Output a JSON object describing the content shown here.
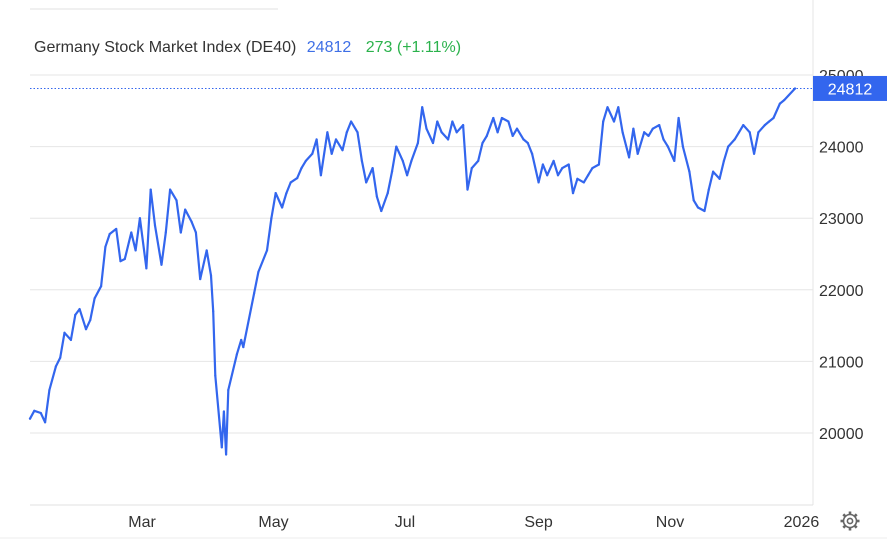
{
  "header": {
    "title": "Germany Stock Market Index (DE40)",
    "last": "24812",
    "change": "273 (+1.11%)"
  },
  "price_tag": "24812",
  "settings_icon": "gear-icon",
  "colors": {
    "line": "#3366ee",
    "last": "#3e6fe6",
    "positive": "#2bb24c",
    "grid": "#e6e6e6",
    "tag_bg": "#3366ee"
  },
  "chart_data": {
    "type": "line",
    "title": "Germany Stock Market Index (DE40)",
    "xlabel": "",
    "ylabel": "",
    "ylim": [
      19000,
      25100
    ],
    "y_ticks": [
      20000,
      21000,
      22000,
      23000,
      24000,
      25000
    ],
    "x_tick_labels": [
      {
        "label": "Mar",
        "x": "2025-03-01"
      },
      {
        "label": "May",
        "x": "2025-05-01"
      },
      {
        "label": "Jul",
        "x": "2025-07-01"
      },
      {
        "label": "Sep",
        "x": "2025-09-01"
      },
      {
        "label": "Nov",
        "x": "2025-11-01"
      },
      {
        "label": "2026",
        "x": "2026-01-01"
      }
    ],
    "xlim": [
      "2025-01-08",
      "2026-01-14"
    ],
    "grid": "horizontal",
    "last_value": 24812,
    "series": [
      {
        "points": [
          [
            "2025-01-08",
            20200
          ],
          [
            "2025-01-10",
            20310
          ],
          [
            "2025-01-13",
            20280
          ],
          [
            "2025-01-15",
            20150
          ],
          [
            "2025-01-17",
            20600
          ],
          [
            "2025-01-20",
            20930
          ],
          [
            "2025-01-22",
            21050
          ],
          [
            "2025-01-24",
            21400
          ],
          [
            "2025-01-27",
            21300
          ],
          [
            "2025-01-29",
            21650
          ],
          [
            "2025-01-31",
            21730
          ],
          [
            "2025-02-03",
            21450
          ],
          [
            "2025-02-05",
            21580
          ],
          [
            "2025-02-07",
            21880
          ],
          [
            "2025-02-10",
            22050
          ],
          [
            "2025-02-12",
            22600
          ],
          [
            "2025-02-14",
            22780
          ],
          [
            "2025-02-17",
            22850
          ],
          [
            "2025-02-19",
            22400
          ],
          [
            "2025-02-21",
            22430
          ],
          [
            "2025-02-24",
            22800
          ],
          [
            "2025-02-26",
            22550
          ],
          [
            "2025-02-28",
            23000
          ],
          [
            "2025-03-03",
            22300
          ],
          [
            "2025-03-05",
            23400
          ],
          [
            "2025-03-07",
            22900
          ],
          [
            "2025-03-10",
            22350
          ],
          [
            "2025-03-12",
            22800
          ],
          [
            "2025-03-14",
            23400
          ],
          [
            "2025-03-17",
            23250
          ],
          [
            "2025-03-19",
            22800
          ],
          [
            "2025-03-21",
            23120
          ],
          [
            "2025-03-24",
            22950
          ],
          [
            "2025-03-26",
            22800
          ],
          [
            "2025-03-28",
            22150
          ],
          [
            "2025-03-31",
            22550
          ],
          [
            "2025-04-02",
            22200
          ],
          [
            "2025-04-03",
            21700
          ],
          [
            "2025-04-04",
            20800
          ],
          [
            "2025-04-07",
            19800
          ],
          [
            "2025-04-08",
            20300
          ],
          [
            "2025-04-09",
            19700
          ],
          [
            "2025-04-10",
            20600
          ],
          [
            "2025-04-14",
            21100
          ],
          [
            "2025-04-16",
            21300
          ],
          [
            "2025-04-17",
            21200
          ],
          [
            "2025-04-22",
            21950
          ],
          [
            "2025-04-24",
            22250
          ],
          [
            "2025-04-28",
            22550
          ],
          [
            "2025-04-30",
            23000
          ],
          [
            "2025-05-02",
            23350
          ],
          [
            "2025-05-05",
            23150
          ],
          [
            "2025-05-07",
            23350
          ],
          [
            "2025-05-09",
            23500
          ],
          [
            "2025-05-12",
            23560
          ],
          [
            "2025-05-14",
            23700
          ],
          [
            "2025-05-16",
            23800
          ],
          [
            "2025-05-19",
            23900
          ],
          [
            "2025-05-21",
            24100
          ],
          [
            "2025-05-23",
            23600
          ],
          [
            "2025-05-26",
            24200
          ],
          [
            "2025-05-28",
            23900
          ],
          [
            "2025-05-30",
            24100
          ],
          [
            "2025-06-02",
            23950
          ],
          [
            "2025-06-04",
            24200
          ],
          [
            "2025-06-06",
            24350
          ],
          [
            "2025-06-09",
            24200
          ],
          [
            "2025-06-11",
            23800
          ],
          [
            "2025-06-13",
            23500
          ],
          [
            "2025-06-16",
            23700
          ],
          [
            "2025-06-18",
            23300
          ],
          [
            "2025-06-20",
            23100
          ],
          [
            "2025-06-23",
            23350
          ],
          [
            "2025-06-25",
            23650
          ],
          [
            "2025-06-27",
            24000
          ],
          [
            "2025-06-30",
            23800
          ],
          [
            "2025-07-02",
            23600
          ],
          [
            "2025-07-04",
            23800
          ],
          [
            "2025-07-07",
            24050
          ],
          [
            "2025-07-09",
            24550
          ],
          [
            "2025-07-11",
            24250
          ],
          [
            "2025-07-14",
            24050
          ],
          [
            "2025-07-16",
            24350
          ],
          [
            "2025-07-18",
            24200
          ],
          [
            "2025-07-21",
            24100
          ],
          [
            "2025-07-23",
            24350
          ],
          [
            "2025-07-25",
            24200
          ],
          [
            "2025-07-28",
            24300
          ],
          [
            "2025-07-30",
            23400
          ],
          [
            "2025-08-01",
            23700
          ],
          [
            "2025-08-04",
            23800
          ],
          [
            "2025-08-06",
            24050
          ],
          [
            "2025-08-08",
            24150
          ],
          [
            "2025-08-11",
            24400
          ],
          [
            "2025-08-13",
            24200
          ],
          [
            "2025-08-15",
            24400
          ],
          [
            "2025-08-18",
            24350
          ],
          [
            "2025-08-20",
            24150
          ],
          [
            "2025-08-22",
            24250
          ],
          [
            "2025-08-25",
            24100
          ],
          [
            "2025-08-27",
            24050
          ],
          [
            "2025-08-29",
            23900
          ],
          [
            "2025-09-01",
            23500
          ],
          [
            "2025-09-03",
            23750
          ],
          [
            "2025-09-05",
            23600
          ],
          [
            "2025-09-08",
            23800
          ],
          [
            "2025-09-10",
            23600
          ],
          [
            "2025-09-12",
            23700
          ],
          [
            "2025-09-15",
            23750
          ],
          [
            "2025-09-17",
            23350
          ],
          [
            "2025-09-19",
            23550
          ],
          [
            "2025-09-22",
            23500
          ],
          [
            "2025-09-24",
            23600
          ],
          [
            "2025-09-26",
            23700
          ],
          [
            "2025-09-29",
            23750
          ],
          [
            "2025-10-01",
            24350
          ],
          [
            "2025-10-03",
            24550
          ],
          [
            "2025-10-06",
            24350
          ],
          [
            "2025-10-08",
            24550
          ],
          [
            "2025-10-10",
            24200
          ],
          [
            "2025-10-13",
            23850
          ],
          [
            "2025-10-15",
            24250
          ],
          [
            "2025-10-17",
            23900
          ],
          [
            "2025-10-20",
            24200
          ],
          [
            "2025-10-22",
            24150
          ],
          [
            "2025-10-24",
            24250
          ],
          [
            "2025-10-27",
            24300
          ],
          [
            "2025-10-29",
            24100
          ],
          [
            "2025-10-31",
            24000
          ],
          [
            "2025-11-03",
            23800
          ],
          [
            "2025-11-05",
            24400
          ],
          [
            "2025-11-07",
            24000
          ],
          [
            "2025-11-10",
            23650
          ],
          [
            "2025-11-12",
            23250
          ],
          [
            "2025-11-14",
            23150
          ],
          [
            "2025-11-17",
            23100
          ],
          [
            "2025-11-19",
            23400
          ],
          [
            "2025-11-21",
            23650
          ],
          [
            "2025-11-24",
            23550
          ],
          [
            "2025-11-26",
            23800
          ],
          [
            "2025-11-28",
            24000
          ],
          [
            "2025-12-01",
            24100
          ],
          [
            "2025-12-03",
            24200
          ],
          [
            "2025-12-05",
            24300
          ],
          [
            "2025-12-08",
            24200
          ],
          [
            "2025-12-10",
            23900
          ],
          [
            "2025-12-12",
            24200
          ],
          [
            "2025-12-15",
            24300
          ],
          [
            "2025-12-17",
            24350
          ],
          [
            "2025-12-19",
            24400
          ],
          [
            "2025-12-22",
            24600
          ],
          [
            "2025-12-24",
            24650
          ],
          [
            "2025-12-29",
            24812
          ]
        ]
      }
    ]
  }
}
